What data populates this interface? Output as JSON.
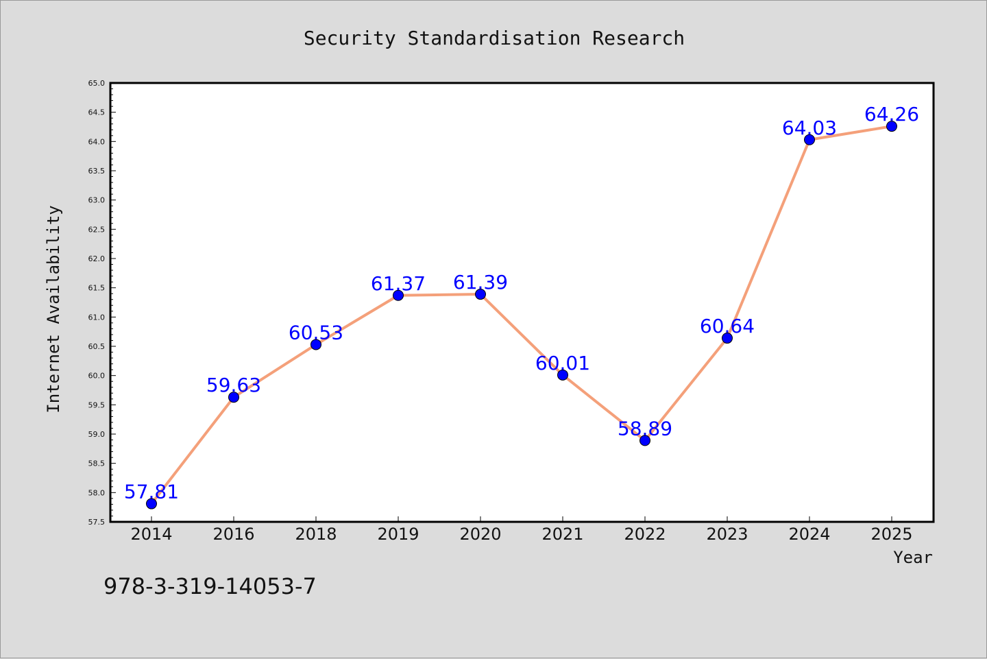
{
  "chart_data": {
    "type": "line",
    "title": "Security Standardisation Research",
    "xlabel": "Year",
    "ylabel": "Internet Availability",
    "categories": [
      "2014",
      "2016",
      "2018",
      "2019",
      "2020",
      "2021",
      "2022",
      "2023",
      "2024",
      "2025"
    ],
    "series": [
      {
        "values": [
          57.81,
          59.63,
          60.53,
          61.37,
          61.39,
          60.01,
          58.89,
          60.64,
          64.03,
          64.26
        ],
        "labels": [
          "57.81",
          "59.63",
          "60.53",
          "61.37",
          "61.39",
          "60.01",
          "58.89",
          "60.64",
          "64.03",
          "64.26"
        ],
        "line_color": "#f4a07a",
        "marker_color": "#0000ff"
      }
    ],
    "ylim": [
      57.5,
      65.0
    ],
    "yticks": [
      "57.5",
      "58.0",
      "58.5",
      "59.0",
      "59.5",
      "60.0",
      "60.5",
      "61.0",
      "61.5",
      "62.0",
      "62.5",
      "63.0",
      "63.5",
      "64.0",
      "64.5",
      "65.0"
    ],
    "grid": false,
    "label_color": "#0000ff"
  },
  "footer_text": "978-3-319-14053-7"
}
